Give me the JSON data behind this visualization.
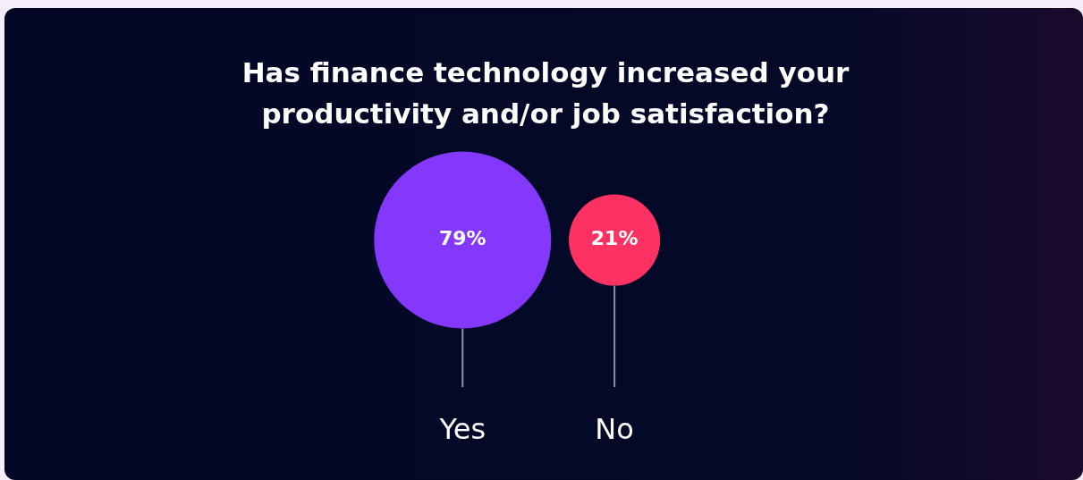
{
  "chart_data": {
    "type": "other",
    "title": "Has finance technology increased your productivity and/or job satisfaction?",
    "categories": [
      "Yes",
      "No"
    ],
    "values": [
      79,
      21
    ],
    "value_labels": [
      "79%",
      "21%"
    ],
    "colors": [
      "#8338fb",
      "#fe3163"
    ]
  }
}
